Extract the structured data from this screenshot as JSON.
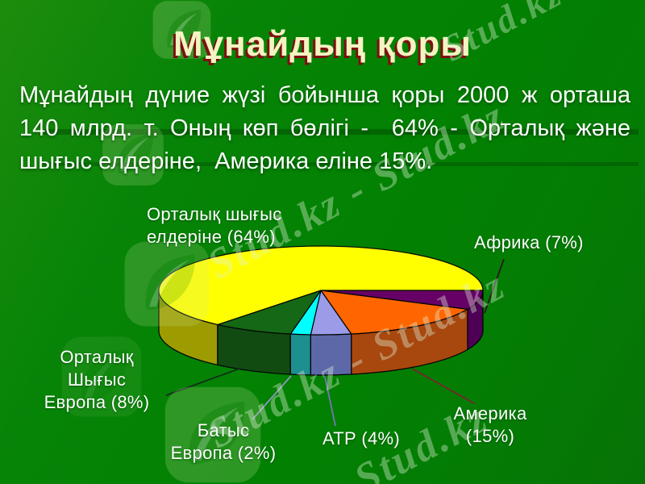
{
  "slide": {
    "title": "Мұнайдың қоры",
    "body_lines": [
      "Мұнайдың дүние жүзі бойынша қоры 2000 ж орташа",
      "140 млрд. т. Оның көп бөлігі -  64% - Орталық және",
      "шығыс елдеріне,  Америка еліне 15%."
    ]
  },
  "chart_data": {
    "type": "pie",
    "three_d": true,
    "title": "",
    "unit": "%",
    "start_angle_deg": 0,
    "direction": "clockwise",
    "slices": [
      {
        "label": "Африка",
        "value": 7,
        "color": "#660066",
        "side_color": "#4E0054"
      },
      {
        "label": "Америка",
        "value": 15,
        "color": "#FF6600",
        "side_color": "#A8470E"
      },
      {
        "label": "АТР",
        "value": 4,
        "color": "#9B9BE8",
        "side_color": "#5C68A8"
      },
      {
        "label": "Батыс Европа",
        "value": 2,
        "color": "#00FFFF",
        "side_color": "#1D8F8F"
      },
      {
        "label": "Орталық Шығыс Европа",
        "value": 8,
        "color": "#156815",
        "side_color": "#114B11"
      },
      {
        "label": "Орталық шығыс елдеріне",
        "value": 64,
        "color": "#FFFF00",
        "side_color": "#9C9C00"
      }
    ]
  },
  "callouts": {
    "main": {
      "lines": [
        "Орталық шығыс",
        "елдеріне (64%)"
      ],
      "line_color": ""
    },
    "africa": {
      "lines": [
        "Африка (7%)"
      ],
      "line_color": "#2B1520"
    },
    "america": {
      "lines": [
        "Америка",
        "(15%)"
      ],
      "line_color": "#7B2230"
    },
    "atr": {
      "lines": [
        "АТР (4%)"
      ],
      "line_color": "#7A74B8"
    },
    "west_europe": {
      "lines": [
        "Батыс",
        "Европа (2%)"
      ],
      "line_color": "#8C96BE"
    },
    "cee": {
      "lines": [
        "Орталық",
        "Шығыс",
        "Европа (8%)"
      ],
      "line_color": "#11311A"
    }
  },
  "watermark": {
    "text_long": "Stud.kz - Stud.kz",
    "text_short": "Stud.kz",
    "logo_name": "stud-kz-leaf-logo"
  },
  "colors": {
    "background_top": "#1D8C0D",
    "background_main": "#028102",
    "title_fill": "#F4F3C2",
    "title_shadow": "#7D1010",
    "body_text": "#FFFFFF"
  }
}
